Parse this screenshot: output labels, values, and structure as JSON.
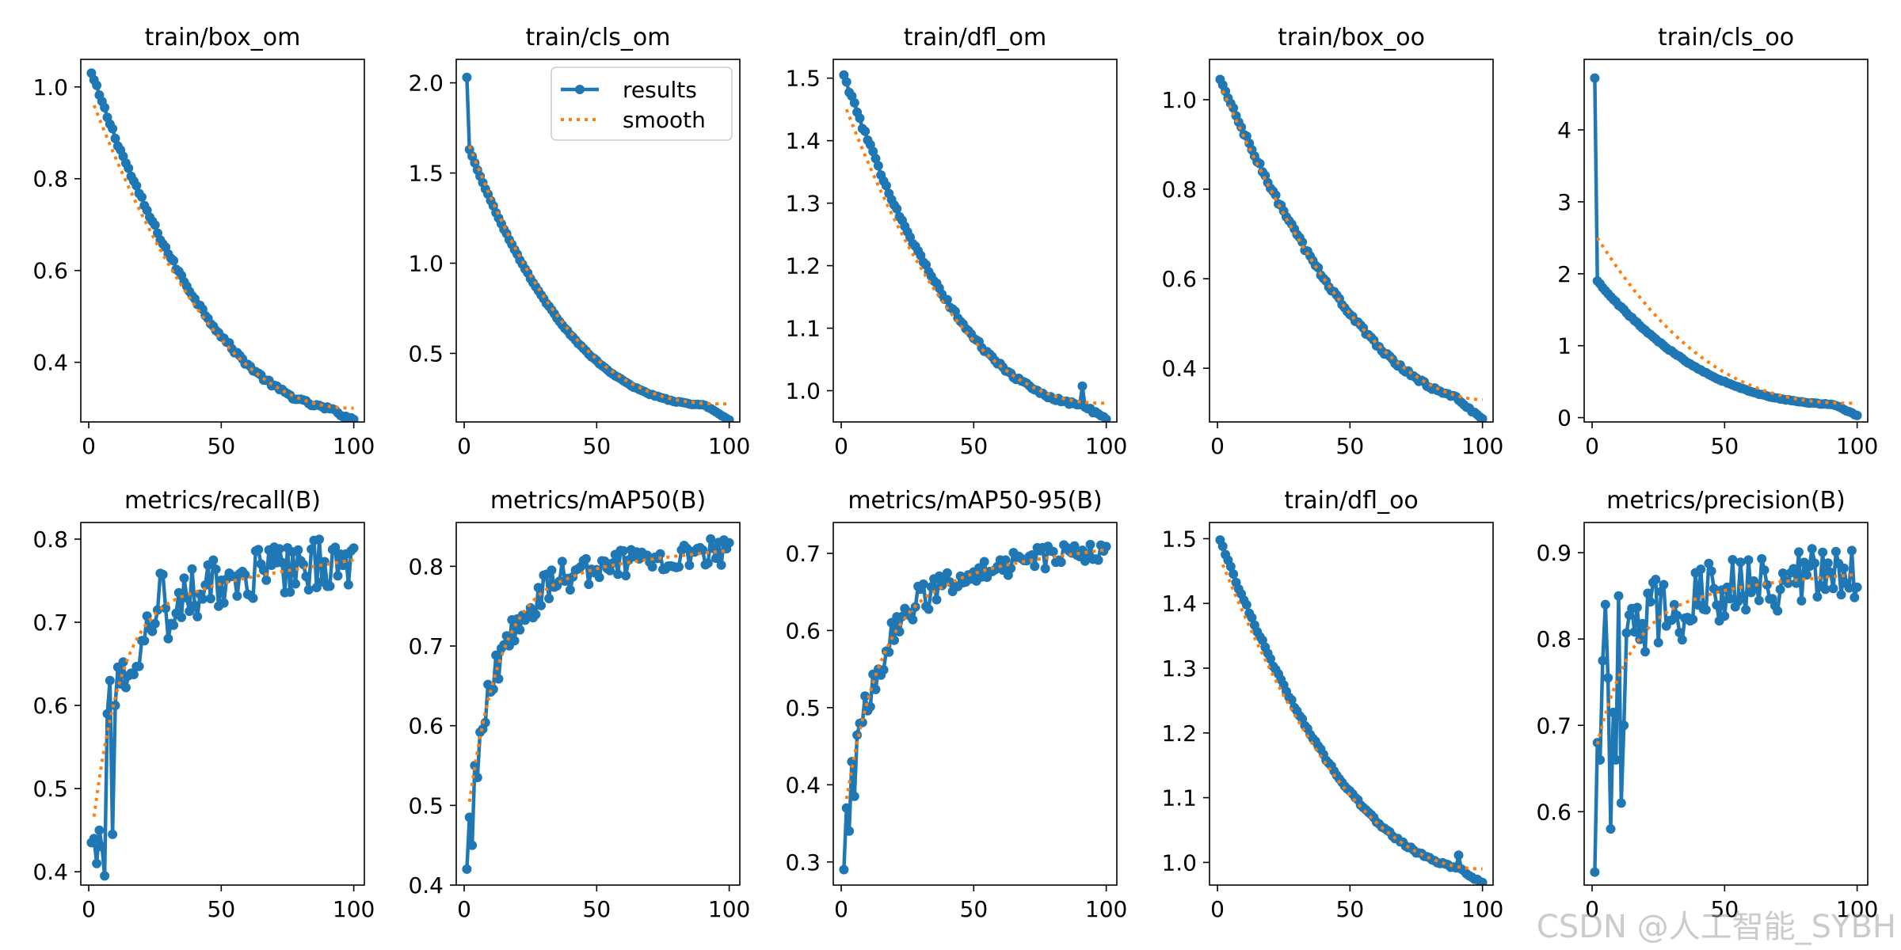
{
  "colors": {
    "results": "#1f77b4",
    "smooth": "#ff7f0e",
    "axis": "#000000"
  },
  "legend": {
    "results_label": "results",
    "smooth_label": "smooth",
    "placement": "top-right of train/cls_om"
  },
  "watermark": "CSDN @人工智能_SYBH",
  "chart_data": [
    {
      "type": "line",
      "title": "train/box_om",
      "xlim": [
        -3,
        104
      ],
      "ylim": [
        0.27,
        1.06
      ],
      "xticks": [
        0,
        50,
        100
      ],
      "yticks": [
        0.4,
        0.6,
        0.8,
        1.0
      ],
      "ytick_labels": [
        "0.4",
        "0.6",
        "0.8",
        "1.0"
      ],
      "series": [
        {
          "name": "results",
          "kind": "curve",
          "start": 1.03,
          "end": 0.295,
          "shape": 1.2,
          "noise": 0.006,
          "dip": 0.02
        },
        {
          "name": "smooth",
          "start_x": 2,
          "start": 0.96,
          "end": 0.3,
          "shape": 1.2
        }
      ]
    },
    {
      "type": "line",
      "title": "train/cls_om",
      "xlim": [
        -3,
        104
      ],
      "ylim": [
        0.12,
        2.13
      ],
      "xticks": [
        0,
        50,
        100
      ],
      "yticks": [
        0.5,
        1.0,
        1.5,
        2.0
      ],
      "ytick_labels": [
        "0.5",
        "1.0",
        "1.5",
        "2.0"
      ],
      "series": [
        {
          "name": "results",
          "kind": "curve",
          "start": 2.03,
          "second": 1.63,
          "end": 0.21,
          "shape": 1.6,
          "noise": 0.004,
          "dip": 0.08
        },
        {
          "name": "smooth",
          "start_x": 2,
          "start": 1.65,
          "end": 0.22,
          "shape": 1.6
        }
      ]
    },
    {
      "type": "line",
      "title": "train/dfl_om",
      "xlim": [
        -3,
        104
      ],
      "ylim": [
        0.95,
        1.53
      ],
      "xticks": [
        0,
        50,
        100
      ],
      "yticks": [
        1.0,
        1.1,
        1.2,
        1.3,
        1.4,
        1.5
      ],
      "ytick_labels": [
        "1.0",
        "1.1",
        "1.2",
        "1.3",
        "1.4",
        "1.5"
      ],
      "series": [
        {
          "name": "results",
          "kind": "curve",
          "start": 1.505,
          "end": 0.975,
          "shape": 1.3,
          "noise": 0.004,
          "dip": 0.02,
          "spike_x": 91,
          "spike": 0.03
        },
        {
          "name": "smooth",
          "start_x": 2,
          "start": 1.45,
          "end": 0.98,
          "shape": 1.3
        }
      ]
    },
    {
      "type": "line",
      "title": "train/box_oo",
      "xlim": [
        -3,
        104
      ],
      "ylim": [
        0.28,
        1.09
      ],
      "xticks": [
        0,
        50,
        100
      ],
      "yticks": [
        0.4,
        0.6,
        0.8,
        1.0
      ],
      "ytick_labels": [
        "0.4",
        "0.6",
        "0.8",
        "1.0"
      ],
      "series": [
        {
          "name": "results",
          "kind": "curve",
          "start": 1.045,
          "end": 0.325,
          "shape": 0.9,
          "noise": 0.006,
          "dip": 0.04
        },
        {
          "name": "smooth",
          "start_x": 2,
          "start": 1.02,
          "end": 0.33,
          "shape": 0.9
        }
      ]
    },
    {
      "type": "line",
      "title": "train/cls_oo",
      "xlim": [
        -3,
        104
      ],
      "ylim": [
        -0.06,
        4.98
      ],
      "xticks": [
        0,
        50,
        100
      ],
      "yticks": [
        0,
        1,
        2,
        3,
        4
      ],
      "ytick_labels": [
        "0",
        "1",
        "2",
        "3",
        "4"
      ],
      "series": [
        {
          "name": "results",
          "kind": "curve",
          "start": 4.72,
          "second": 1.9,
          "end": 0.18,
          "shape": 1.5,
          "noise": 0.01,
          "dip": 0.15
        },
        {
          "name": "smooth",
          "start_x": 2,
          "start": 2.5,
          "end": 0.2,
          "shape": 1.5
        }
      ]
    },
    {
      "type": "line",
      "title": "metrics/recall(B)",
      "xlim": [
        -3,
        104
      ],
      "ylim": [
        0.384,
        0.82
      ],
      "xticks": [
        0,
        50,
        100
      ],
      "yticks": [
        0.4,
        0.5,
        0.6,
        0.7,
        0.8
      ],
      "ytick_labels": [
        "0.4",
        "0.5",
        "0.6",
        "0.7",
        "0.8"
      ],
      "series": [
        {
          "name": "results",
          "kind": "metric",
          "start": 0.44,
          "plateau": 0.745,
          "final": 0.775,
          "k": 0.09,
          "noise": 0.045,
          "seed": 7,
          "fixed": [
            [
              1,
              0.435
            ],
            [
              2,
              0.44
            ],
            [
              3,
              0.41
            ],
            [
              4,
              0.45
            ],
            [
              5,
              0.43
            ],
            [
              6,
              0.395
            ],
            [
              7,
              0.59
            ],
            [
              8,
              0.63
            ],
            [
              9,
              0.445
            ],
            [
              10,
              0.6
            ]
          ]
        },
        {
          "name": "smooth",
          "start_x": 2,
          "start": 0.44,
          "end": 0.775,
          "plateau": 0.745,
          "k": 0.09
        }
      ]
    },
    {
      "type": "line",
      "title": "metrics/mAP50(B)",
      "xlim": [
        -3,
        104
      ],
      "ylim": [
        0.4,
        0.855
      ],
      "xticks": [
        0,
        50,
        100
      ],
      "yticks": [
        0.4,
        0.5,
        0.6,
        0.7,
        0.8
      ],
      "ytick_labels": [
        "0.4",
        "0.5",
        "0.6",
        "0.7",
        "0.8"
      ],
      "series": [
        {
          "name": "results",
          "kind": "metric",
          "start": 0.45,
          "plateau": 0.8,
          "final": 0.82,
          "k": 0.08,
          "noise": 0.025,
          "seed": 13,
          "fixed": [
            [
              1,
              0.42
            ],
            [
              2,
              0.485
            ],
            [
              3,
              0.45
            ],
            [
              4,
              0.55
            ],
            [
              5,
              0.535
            ]
          ]
        },
        {
          "name": "smooth",
          "start_x": 2,
          "start": 0.48,
          "end": 0.82,
          "plateau": 0.8,
          "k": 0.08
        }
      ]
    },
    {
      "type": "line",
      "title": "metrics/mAP50-95(B)",
      "xlim": [
        -3,
        104
      ],
      "ylim": [
        0.27,
        0.74
      ],
      "xticks": [
        0,
        50,
        100
      ],
      "yticks": [
        0.3,
        0.4,
        0.5,
        0.6,
        0.7
      ],
      "ytick_labels": [
        "0.3",
        "0.4",
        "0.5",
        "0.6",
        "0.7"
      ],
      "series": [
        {
          "name": "results",
          "kind": "metric",
          "start": 0.34,
          "plateau": 0.68,
          "final": 0.705,
          "k": 0.07,
          "noise": 0.022,
          "seed": 21,
          "fixed": [
            [
              1,
              0.29
            ],
            [
              2,
              0.37
            ],
            [
              3,
              0.34
            ],
            [
              4,
              0.43
            ],
            [
              5,
              0.385
            ]
          ]
        },
        {
          "name": "smooth",
          "start_x": 2,
          "start": 0.36,
          "end": 0.705,
          "plateau": 0.68,
          "k": 0.07
        }
      ]
    },
    {
      "type": "line",
      "title": "train/dfl_oo",
      "xlim": [
        -3,
        104
      ],
      "ylim": [
        0.965,
        1.525
      ],
      "xticks": [
        0,
        50,
        100
      ],
      "yticks": [
        1.0,
        1.1,
        1.2,
        1.3,
        1.4,
        1.5
      ],
      "ytick_labels": [
        "1.0",
        "1.1",
        "1.2",
        "1.3",
        "1.4",
        "1.5"
      ],
      "series": [
        {
          "name": "results",
          "kind": "curve",
          "start": 1.498,
          "end": 0.988,
          "shape": 1.1,
          "noise": 0.003,
          "dip": 0.02,
          "spike_x": 91,
          "spike": 0.02
        },
        {
          "name": "smooth",
          "start_x": 2,
          "start": 1.46,
          "end": 0.99,
          "shape": 1.1
        }
      ]
    },
    {
      "type": "line",
      "title": "metrics/precision(B)",
      "xlim": [
        -3,
        104
      ],
      "ylim": [
        0.515,
        0.935
      ],
      "xticks": [
        0,
        50,
        100
      ],
      "yticks": [
        0.6,
        0.7,
        0.8,
        0.9
      ],
      "ytick_labels": [
        "0.6",
        "0.7",
        "0.8",
        "0.9"
      ],
      "series": [
        {
          "name": "results",
          "kind": "metric",
          "start": 0.68,
          "plateau": 0.86,
          "final": 0.875,
          "k": 0.07,
          "noise": 0.05,
          "seed": 33,
          "fixed": [
            [
              1,
              0.53
            ],
            [
              2,
              0.68
            ],
            [
              3,
              0.66
            ],
            [
              4,
              0.775
            ],
            [
              5,
              0.84
            ],
            [
              6,
              0.755
            ],
            [
              7,
              0.58
            ],
            [
              8,
              0.715
            ],
            [
              9,
              0.66
            ],
            [
              10,
              0.85
            ],
            [
              11,
              0.61
            ],
            [
              12,
              0.7
            ]
          ]
        },
        {
          "name": "smooth",
          "start_x": 2,
          "start": 0.665,
          "end": 0.875,
          "plateau": 0.86,
          "k": 0.07
        }
      ]
    }
  ]
}
